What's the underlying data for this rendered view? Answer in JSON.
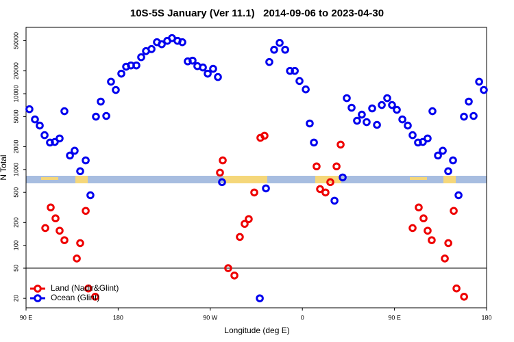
{
  "chart_data": {
    "type": "scatter",
    "title": "10S-5S January (Ver 11.1)   2014-09-06 to 2023-04-30",
    "x_label": "Longitude (deg E)",
    "y_label": "N Total",
    "xlim": [
      90,
      540
    ],
    "xticks": [
      {
        "value": 90,
        "label": "90 E"
      },
      180,
      {
        "value": 270,
        "label": "90 W"
      },
      {
        "value": 360,
        "label": "0"
      },
      {
        "value": 450,
        "label": "90 E"
      },
      {
        "value": 540,
        "label": "180"
      }
    ],
    "ylim": [
      15,
      75000
    ],
    "log_y": true,
    "yticks": [
      20,
      50,
      100,
      200,
      500,
      1000,
      2000,
      5000,
      10000,
      20000,
      50000
    ],
    "reference_line": 50,
    "legend": "bottomleft",
    "series": [
      {
        "name": "Land (Nadir&Glint)",
        "color": "#ee0000",
        "x": [
          108.8,
          114.1,
          118.8,
          122.8,
          127.5,
          139.6,
          142.9,
          148.3,
          150.9,
          157.6,
          279.5,
          282.2,
          287.5,
          293.6,
          298.9,
          303.6,
          307.6,
          313,
          319,
          323,
          373.9,
          377.3,
          382.6,
          387.3,
          393.4,
          397.4,
          467.7,
          473.7,
          478.4,
          482.4,
          486.4,
          499.2,
          502.6,
          507.9,
          510.6,
          518
        ],
        "values": [
          169,
          316,
          227,
          156,
          117,
          67,
          107,
          285,
          27,
          21,
          910,
          1320,
          50,
          40,
          129,
          192,
          222,
          498,
          2620,
          2790,
          1100,
          552,
          498,
          681,
          1100,
          2130,
          169,
          316,
          227,
          156,
          117,
          67,
          107,
          285,
          27,
          21
        ]
      },
      {
        "name": "Ocean (Glint)",
        "color": "#0000ee",
        "x": [
          93.3,
          98.7,
          103.4,
          108.1,
          113.4,
          118.1,
          122.8,
          127.5,
          132.9,
          137.5,
          142.9,
          148.3,
          152.9,
          158.3,
          163,
          168.4,
          173,
          177.7,
          183.1,
          187.8,
          192.5,
          197.8,
          202.5,
          207.2,
          212.6,
          217.9,
          222.6,
          228,
          232.6,
          238,
          242.7,
          248,
          252.7,
          257.4,
          262.8,
          267.5,
          272.8,
          277.5,
          281.5,
          318.4,
          324.4,
          327.7,
          332.4,
          337.8,
          343.2,
          347.9,
          352.6,
          357.2,
          363.3,
          367.2,
          371.3,
          391.4,
          399.4,
          403.4,
          408.1,
          413.4,
          418.1,
          422.8,
          428.2,
          432.9,
          437.6,
          442.9,
          447.6,
          452.3,
          457.7,
          463,
          467.7,
          473,
          477.7,
          482.4,
          487.1,
          492.5,
          497.2,
          502.5,
          507.2,
          512.6,
          517.9,
          522.6,
          527.3,
          532.7,
          537.3
        ],
        "values": [
          6250,
          4580,
          3800,
          2840,
          2270,
          2310,
          2570,
          5880,
          1530,
          1770,
          950,
          1320,
          458,
          4980,
          7870,
          5090,
          14400,
          11200,
          18400,
          22700,
          23600,
          23600,
          30300,
          36500,
          38800,
          47800,
          44900,
          49800,
          54100,
          49800,
          47800,
          26700,
          27300,
          23100,
          22200,
          18400,
          21300,
          16600,
          681,
          20,
          564,
          26200,
          38000,
          46800,
          38000,
          20000,
          20000,
          14700,
          11400,
          4050,
          2270,
          388,
          787,
          8730,
          6530,
          4400,
          5300,
          4220,
          6400,
          3880,
          7090,
          8730,
          7090,
          6130,
          4580,
          3800,
          2840,
          2270,
          2310,
          2570,
          5880,
          1530,
          1770,
          950,
          1320,
          458,
          4980,
          7870,
          5090,
          14400,
          11200
        ]
      }
    ]
  }
}
